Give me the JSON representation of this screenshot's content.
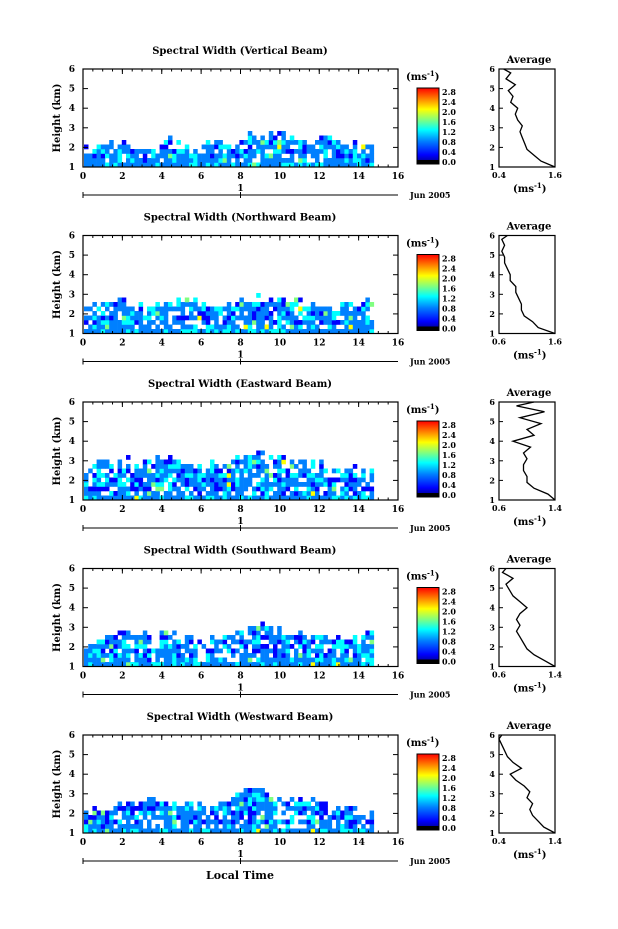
{
  "figure": {
    "xlabel": "Local Time",
    "date_label": "Jun 2005",
    "date_tick": "1",
    "colorbar_unit_label": "(ms",
    "colorbar_unit_exp": "-1",
    "colorbar_ticks": [
      "2.8",
      "2.4",
      "2.0",
      "1.6",
      "1.2",
      "0.8",
      "0.4",
      "0.0"
    ],
    "average_title": "Average",
    "average_xlabel": "(ms",
    "average_xlabel_exp": "-1",
    "ylabel": "Height (km)",
    "colors": {
      "colormap": [
        "#00007f",
        "#0000ff",
        "#0080ff",
        "#00ffff",
        "#80ff80",
        "#ffff00",
        "#ff8000",
        "#ff0000",
        "#7f0000"
      ],
      "axis": "#000000",
      "background": "#ffffff"
    }
  },
  "chart_data": [
    {
      "type": "heatmap",
      "title": "Spectral Width (Vertical Beam)",
      "xlim": [
        0,
        16
      ],
      "ylim": [
        1,
        6
      ],
      "xticks": [
        "0",
        "2",
        "4",
        "6",
        "8",
        "10",
        "12",
        "14",
        "16"
      ],
      "yticks": [
        "1",
        "2",
        "3",
        "4",
        "5",
        "6"
      ],
      "x_end": 14.6,
      "top_profile": [
        2.1,
        2.2,
        2.3,
        2.3,
        2.1,
        2.0,
        2.4,
        2.5,
        2.3,
        2.0,
        2.2,
        2.3,
        2.4,
        2.6,
        2.7,
        2.7,
        2.8,
        2.7,
        2.6,
        2.5,
        2.6,
        2.5,
        2.4,
        2.3,
        2.3
      ],
      "average": {
        "xlim": [
          0.4,
          1.6
        ],
        "xticks": [
          "0.4",
          "1.6"
        ],
        "heights": [
          1.0,
          1.3,
          1.6,
          1.9,
          2.2,
          2.5,
          2.8,
          3.1,
          3.4,
          3.7,
          4.0,
          4.3,
          4.6,
          4.9,
          5.2,
          5.5,
          5.8,
          6.0
        ],
        "values": [
          1.6,
          1.3,
          1.15,
          1.0,
          0.95,
          0.9,
          0.85,
          0.9,
          0.8,
          0.75,
          0.8,
          0.65,
          0.7,
          0.6,
          0.75,
          0.55,
          0.65,
          0.5
        ]
      }
    },
    {
      "type": "heatmap",
      "title": "Spectral Width (Northward Beam)",
      "xlim": [
        0,
        16
      ],
      "ylim": [
        1,
        6
      ],
      "xticks": [
        "0",
        "2",
        "4",
        "6",
        "8",
        "10",
        "12",
        "14",
        "16"
      ],
      "yticks": [
        "1",
        "2",
        "3",
        "4",
        "5",
        "6"
      ],
      "x_end": 14.6,
      "top_profile": [
        2.5,
        2.7,
        2.8,
        2.8,
        2.6,
        2.7,
        2.6,
        2.7,
        2.8,
        2.8,
        2.7,
        2.6,
        2.6,
        2.7,
        2.8,
        2.9,
        3.0,
        2.9,
        2.8,
        2.7,
        2.6,
        2.5,
        2.6,
        2.5,
        2.7
      ],
      "average": {
        "xlim": [
          0.6,
          1.6
        ],
        "xticks": [
          "0.6",
          "1.6"
        ],
        "heights": [
          1.0,
          1.3,
          1.6,
          1.9,
          2.2,
          2.5,
          2.8,
          3.1,
          3.4,
          3.7,
          4.0,
          4.3,
          4.6,
          4.9,
          5.2,
          5.5,
          5.8,
          6.0
        ],
        "values": [
          1.6,
          1.3,
          1.2,
          1.05,
          1.0,
          1.0,
          0.95,
          0.9,
          0.9,
          0.8,
          0.8,
          0.75,
          0.7,
          0.7,
          0.65,
          0.7,
          0.65,
          0.75
        ]
      }
    },
    {
      "type": "heatmap",
      "title": "Spectral Width (Eastward Beam)",
      "xlim": [
        0,
        16
      ],
      "ylim": [
        1,
        6
      ],
      "xticks": [
        "0",
        "2",
        "4",
        "6",
        "8",
        "10",
        "12",
        "14",
        "16"
      ],
      "yticks": [
        "1",
        "2",
        "3",
        "4",
        "5",
        "6"
      ],
      "x_end": 14.6,
      "top_profile": [
        2.8,
        3.0,
        3.2,
        3.2,
        3.1,
        3.2,
        3.3,
        3.3,
        3.1,
        3.0,
        2.9,
        3.0,
        3.1,
        3.2,
        3.3,
        3.4,
        3.3,
        3.2,
        3.1,
        3.0,
        2.9,
        2.8,
        2.8,
        2.7,
        2.6
      ],
      "average": {
        "xlim": [
          0.6,
          1.4
        ],
        "xticks": [
          "0.6",
          "1.4"
        ],
        "heights": [
          1.0,
          1.3,
          1.6,
          1.9,
          2.2,
          2.5,
          2.8,
          3.1,
          3.4,
          3.7,
          4.0,
          4.3,
          4.6,
          4.9,
          5.2,
          5.5,
          5.8,
          6.0
        ],
        "values": [
          1.4,
          1.3,
          1.1,
          1.0,
          1.0,
          0.95,
          0.95,
          1.0,
          0.95,
          1.05,
          0.8,
          1.1,
          1.0,
          1.2,
          0.9,
          1.25,
          0.85,
          1.1
        ]
      }
    },
    {
      "type": "heatmap",
      "title": "Spectral Width (Southward Beam)",
      "xlim": [
        0,
        16
      ],
      "ylim": [
        1,
        6
      ],
      "xticks": [
        "0",
        "2",
        "4",
        "6",
        "8",
        "10",
        "12",
        "14",
        "16"
      ],
      "yticks": [
        "1",
        "2",
        "3",
        "4",
        "5",
        "6"
      ],
      "x_end": 14.6,
      "top_profile": [
        2.4,
        2.6,
        2.7,
        2.8,
        2.8,
        2.9,
        3.0,
        2.9,
        2.7,
        2.6,
        2.5,
        2.6,
        2.8,
        3.0,
        3.2,
        3.3,
        3.1,
        2.9,
        2.8,
        2.7,
        2.8,
        2.6,
        2.5,
        2.6,
        2.9
      ],
      "average": {
        "xlim": [
          0.6,
          1.4
        ],
        "xticks": [
          "0.6",
          "1.4"
        ],
        "heights": [
          1.0,
          1.3,
          1.6,
          1.9,
          2.2,
          2.5,
          2.8,
          3.1,
          3.4,
          3.7,
          4.0,
          4.3,
          4.6,
          4.9,
          5.2,
          5.5,
          5.8,
          6.0
        ],
        "values": [
          1.4,
          1.25,
          1.1,
          1.0,
          0.95,
          0.9,
          0.85,
          0.9,
          0.85,
          0.9,
          1.0,
          0.9,
          0.8,
          0.75,
          0.7,
          0.8,
          0.65,
          0.7
        ]
      }
    },
    {
      "type": "heatmap",
      "title": "Spectral Width (Westward Beam)",
      "xlim": [
        0,
        16
      ],
      "ylim": [
        1,
        6
      ],
      "xticks": [
        "0",
        "2",
        "4",
        "6",
        "8",
        "10",
        "12",
        "14",
        "16"
      ],
      "yticks": [
        "1",
        "2",
        "3",
        "4",
        "5",
        "6"
      ],
      "x_end": 14.6,
      "top_profile": [
        2.3,
        2.5,
        2.6,
        2.7,
        2.7,
        2.8,
        2.8,
        2.7,
        2.6,
        2.5,
        2.4,
        2.6,
        2.8,
        3.2,
        3.5,
        3.3,
        3.0,
        2.9,
        2.8,
        2.7,
        2.6,
        2.5,
        2.4,
        2.3,
        2.2
      ],
      "average": {
        "xlim": [
          0.4,
          1.4
        ],
        "xticks": [
          "0.4",
          "1.4"
        ],
        "heights": [
          1.0,
          1.3,
          1.6,
          1.9,
          2.2,
          2.5,
          2.8,
          3.1,
          3.4,
          3.7,
          4.0,
          4.3,
          4.6,
          4.9,
          5.2,
          5.5,
          5.8,
          6.0
        ],
        "values": [
          1.4,
          1.2,
          1.1,
          1.0,
          0.95,
          1.0,
          0.9,
          0.95,
          0.85,
          0.7,
          0.6,
          0.8,
          0.65,
          0.55,
          0.5,
          0.45,
          0.4,
          0.45
        ]
      }
    }
  ]
}
